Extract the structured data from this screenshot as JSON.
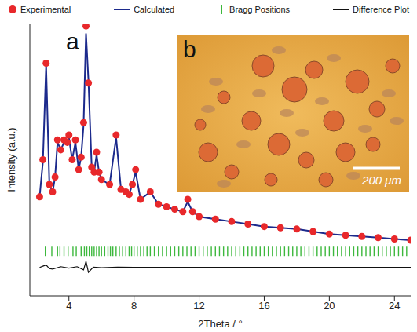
{
  "chart_data": {
    "type": "scatter",
    "panel": "a",
    "x_label": "2Theta / °",
    "y_label": "Intensity (a.u.)",
    "xlim": [
      1.6,
      25
    ],
    "xticks": [
      4,
      8,
      12,
      16,
      20,
      24
    ],
    "ylim": [
      0,
      110
    ],
    "yticks": [],
    "tick_labels": "x",
    "grid": false,
    "legend": "top",
    "series": [
      {
        "name": "Experimental",
        "type": "scatter",
        "marker": "o",
        "color": "#e8282b",
        "x": [
          2.2,
          2.4,
          2.6,
          2.8,
          3.0,
          3.15,
          3.3,
          3.5,
          3.7,
          3.9,
          4.0,
          4.2,
          4.4,
          4.6,
          4.75,
          4.9,
          5.05,
          5.2,
          5.4,
          5.55,
          5.7,
          5.85,
          6.0,
          6.5,
          6.9,
          7.2,
          7.5,
          7.7,
          7.9,
          8.1,
          8.4,
          9.0,
          9.5,
          10.0,
          10.5,
          11.0,
          11.3,
          11.6,
          12.0,
          13.0,
          14.0,
          15.0,
          16.0,
          17.0,
          18.0,
          19.0,
          20.0,
          21.0,
          22.0,
          23.0,
          24.0,
          25.0
        ],
        "values": [
          40,
          55,
          94,
          45,
          42,
          48,
          63,
          59,
          63,
          62,
          65,
          55,
          63,
          51,
          56,
          70,
          109,
          86,
          52,
          50,
          58,
          50,
          47,
          45,
          65,
          43,
          42,
          41,
          45,
          51,
          39,
          42,
          37,
          36,
          35,
          34,
          39,
          34,
          32,
          31,
          30,
          29,
          28,
          27.5,
          27,
          26,
          25,
          24.5,
          24,
          23.5,
          23,
          22.5
        ]
      },
      {
        "name": "Calculated",
        "type": "line",
        "line_style": "solid",
        "color": "#1c2a8c",
        "x": [
          2.2,
          2.4,
          2.6,
          2.8,
          3.0,
          3.15,
          3.3,
          3.5,
          3.7,
          3.9,
          4.0,
          4.2,
          4.4,
          4.6,
          4.75,
          4.9,
          5.05,
          5.2,
          5.4,
          5.55,
          5.7,
          5.85,
          6.0,
          6.5,
          6.9,
          7.2,
          7.5,
          7.7,
          7.9,
          8.1,
          8.4,
          9.0,
          9.5,
          10.0,
          10.5,
          11.0,
          11.3,
          11.6,
          12.0,
          13.0,
          14.0,
          15.0,
          16.0,
          17.0,
          18.0,
          19.0,
          20.0,
          21.0,
          22.0,
          23.0,
          24.0,
          25.0
        ],
        "values": [
          40,
          54,
          93,
          45,
          42,
          48,
          62,
          59,
          62,
          61,
          64,
          55,
          62,
          51,
          56,
          69,
          106,
          87,
          52,
          50,
          57,
          50,
          47,
          45,
          64,
          43,
          42,
          41,
          45,
          50,
          39,
          42,
          37,
          36,
          35,
          34,
          38,
          34,
          32,
          31,
          30,
          29,
          28,
          27.5,
          27,
          26,
          25,
          24.5,
          24,
          23.5,
          23,
          22.5
        ]
      },
      {
        "name": "Bragg Positions",
        "type": "scatter",
        "marker": "|",
        "color": "#3cb83c",
        "x": [
          2.55,
          2.95,
          3.3,
          3.45,
          3.7,
          3.95,
          4.25,
          4.45,
          4.75,
          4.95,
          5.1,
          5.25,
          5.4,
          5.55,
          5.7,
          5.85,
          6.0,
          6.2,
          6.4,
          6.55,
          6.7,
          6.9,
          7.1,
          7.3,
          7.5,
          7.7,
          7.85,
          8.0,
          8.2,
          8.4,
          8.6,
          8.8,
          9.0,
          9.25,
          9.5,
          9.75,
          10.0,
          10.25,
          10.5,
          10.75,
          11.0,
          11.25,
          11.5,
          11.75,
          12.0,
          12.25,
          12.5,
          12.75,
          13.0,
          13.25,
          13.5,
          13.75,
          14.0,
          14.25,
          14.5,
          14.75,
          15.0,
          15.25,
          15.5,
          15.75,
          16.0,
          16.25,
          16.5,
          16.75,
          17.0,
          17.25,
          17.5,
          17.75,
          18.0,
          18.25,
          18.5,
          18.75,
          19.0,
          19.25,
          19.5,
          19.75,
          20.0,
          20.25,
          20.5,
          20.75,
          21.0,
          21.25,
          21.5,
          21.75,
          22.0,
          22.25,
          22.5,
          22.75,
          23.0,
          23.25,
          23.5,
          23.75,
          24.0,
          24.25,
          24.5,
          24.75
        ],
        "values": [
          18,
          18,
          18,
          18,
          18,
          18,
          18,
          18,
          18,
          18,
          18,
          18,
          18,
          18,
          18,
          18,
          18,
          18,
          18,
          18,
          18,
          18,
          18,
          18,
          18,
          18,
          18,
          18,
          18,
          18,
          18,
          18,
          18,
          18,
          18,
          18,
          18,
          18,
          18,
          18,
          18,
          18,
          18,
          18,
          18,
          18,
          18,
          18,
          18,
          18,
          18,
          18,
          18,
          18,
          18,
          18,
          18,
          18,
          18,
          18,
          18,
          18,
          18,
          18,
          18,
          18,
          18,
          18,
          18,
          18,
          18,
          18,
          18,
          18,
          18,
          18,
          18,
          18,
          18,
          18,
          18,
          18,
          18,
          18,
          18,
          18,
          18,
          18,
          18,
          18,
          18,
          18,
          18,
          18,
          18,
          18
        ]
      },
      {
        "name": "Difference Plot",
        "type": "line",
        "line_style": "solid",
        "color": "#111111",
        "x": [
          2.2,
          2.4,
          2.6,
          2.8,
          3.0,
          3.5,
          4.0,
          4.5,
          4.9,
          5.05,
          5.2,
          5.5,
          6.0,
          7.0,
          8.0,
          9.0,
          10.0,
          12.0,
          14.0,
          16.0,
          18.0,
          20.0,
          22.0,
          24.0,
          25.0
        ],
        "values": [
          11.5,
          12,
          12.5,
          11,
          10.8,
          11.8,
          11.2,
          11.8,
          10.5,
          14,
          9.5,
          11.6,
          11.4,
          11.6,
          11.5,
          11.5,
          11.5,
          11.5,
          11.5,
          11.5,
          11.5,
          11.5,
          11.5,
          11.5,
          11.5
        ]
      }
    ],
    "inset": {
      "panel": "b",
      "scale_label": "200 μm"
    }
  }
}
